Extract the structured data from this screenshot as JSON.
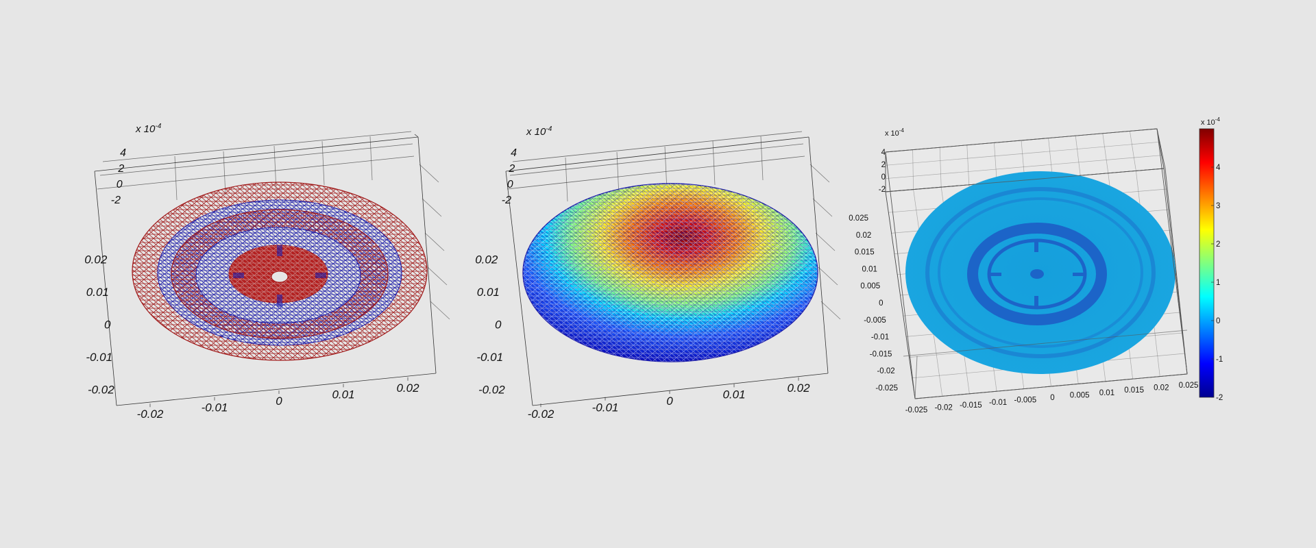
{
  "colors": {
    "background": "#e6e6e6",
    "mesh_flat": "#a01818",
    "mesh_low": "#1a1aa8",
    "surface": "#129edb",
    "ring_dark": "#1c64c8"
  },
  "chart_data": [
    {
      "type": "surface",
      "style": "triangular-mesh",
      "colormap": "jet",
      "exponent_label": "x 10",
      "exponent_power": "-4",
      "xticks": [
        "-0.02",
        "-0.01",
        "0",
        "0.01",
        "0.02"
      ],
      "yticks": [
        "0.02",
        "0.01",
        "0",
        "-0.01",
        "-0.02"
      ],
      "zticks": [
        "4",
        "2",
        "0",
        "-2"
      ],
      "xlim": [
        -0.025,
        0.025
      ],
      "ylim": [
        -0.025,
        0.025
      ],
      "zlim": [
        -2,
        4
      ],
      "grid": false
    },
    {
      "type": "surface",
      "style": "triangular-mesh",
      "colormap": "jet",
      "exponent_label": "x 10",
      "exponent_power": "-4",
      "xticks": [
        "-0.02",
        "-0.01",
        "0",
        "0.01",
        "0.02"
      ],
      "yticks": [
        "0.02",
        "0.01",
        "0",
        "-0.01",
        "-0.02"
      ],
      "zticks": [
        "4",
        "2",
        "0",
        "-2"
      ],
      "xlim": [
        -0.025,
        0.025
      ],
      "ylim": [
        -0.025,
        0.025
      ],
      "zlim": [
        -2,
        4
      ],
      "grid": false
    },
    {
      "type": "surface",
      "style": "shaded",
      "colormap": "jet",
      "exponent_label": "x 10",
      "exponent_power": "-4",
      "xticks": [
        "-0.025",
        "-0.02",
        "-0.015",
        "-0.01",
        "-0.005",
        "0",
        "0.005",
        "0.01",
        "0.015",
        "0.02",
        "0.025"
      ],
      "yticks": [
        "0.025",
        "0.02",
        "0.015",
        "0.01",
        "0.005",
        "0",
        "-0.005",
        "-0.01",
        "-0.015",
        "-0.02",
        "-0.025"
      ],
      "zticks": [
        "4",
        "2",
        "0",
        "-2"
      ],
      "xlim": [
        -0.025,
        0.025
      ],
      "ylim": [
        -0.025,
        0.025
      ],
      "zlim": [
        -2,
        4
      ],
      "grid": true,
      "colorbar": {
        "exponent_label": "x 10",
        "exponent_power": "-4",
        "ticks": [
          "4",
          "3",
          "2",
          "1",
          "0",
          "-1",
          "-2"
        ],
        "range": [
          -2,
          5
        ]
      }
    }
  ]
}
